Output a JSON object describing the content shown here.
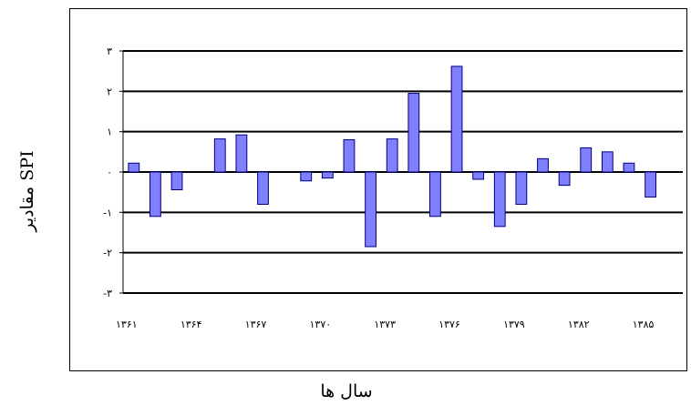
{
  "chart_data": {
    "type": "bar",
    "xlabel": "سال ها",
    "ylabel": "مقادیر SPI",
    "ylim": [
      -3,
      3
    ],
    "ytick_values": [
      3,
      2,
      1,
      0,
      -1,
      -2,
      -3
    ],
    "ytick_labels": [
      "۳",
      "۲",
      "۱",
      "۰",
      "-۱",
      "-۲",
      "-۳"
    ],
    "xtick_labels": [
      "۱۳۶۱",
      "۱۳۶۴",
      "۱۳۶۷",
      "۱۳۷۰",
      "۱۳۷۳",
      "۱۳۷۶",
      "۱۳۷۹",
      "۱۳۸۲",
      "۱۳۸۵"
    ],
    "categories": [
      "1361",
      "1362",
      "1363",
      "1364",
      "1365",
      "1366",
      "1367",
      "1368",
      "1369",
      "1370",
      "1371",
      "1372",
      "1373",
      "1374",
      "1375",
      "1376",
      "1377",
      "1378",
      "1379",
      "1380",
      "1381",
      "1382",
      "1383",
      "1384",
      "1385",
      "1386"
    ],
    "values": [
      0.22,
      -1.1,
      -0.44,
      0,
      0.82,
      0.92,
      -0.8,
      0,
      -0.22,
      -0.15,
      0.8,
      -1.85,
      0.82,
      1.95,
      -1.1,
      2.62,
      -0.18,
      -1.35,
      -0.8,
      0.33,
      -0.33,
      0.6,
      0.5,
      0.22,
      -0.62,
      0
    ],
    "grid": true,
    "bar_color": "#8080ff",
    "bar_edge_color": "#000080"
  }
}
